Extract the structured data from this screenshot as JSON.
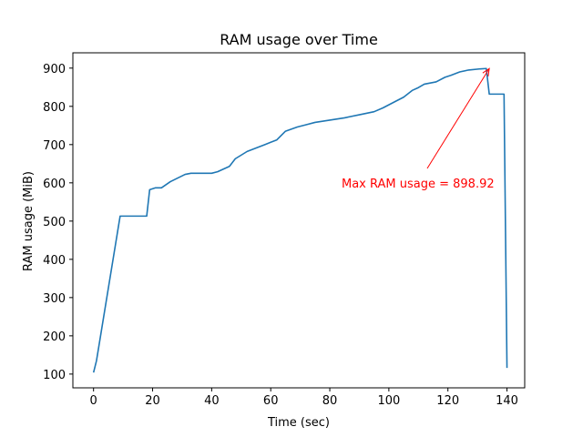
{
  "chart_data": {
    "type": "line",
    "title": "RAM usage over Time",
    "xlabel": "Time (sec)",
    "ylabel": "RAM usage (MiB)",
    "xlim": [
      -7,
      146
    ],
    "ylim": [
      64,
      940
    ],
    "xticks": [
      0,
      20,
      40,
      60,
      80,
      100,
      120,
      140
    ],
    "yticks": [
      100,
      200,
      300,
      400,
      500,
      600,
      700,
      800,
      900
    ],
    "grid": false,
    "series": [
      {
        "color": "#1f77b4",
        "x": [
          0,
          1,
          9,
          18,
          19,
          21,
          23,
          26,
          31,
          33,
          40,
          42,
          46,
          48,
          52,
          55,
          58,
          60,
          62,
          65,
          69,
          72,
          75,
          80,
          85,
          90,
          95,
          98,
          102,
          105,
          108,
          110,
          112,
          116,
          119,
          121,
          124,
          127,
          131,
          133,
          134,
          137,
          139,
          140
        ],
        "y": [
          104,
          135,
          513,
          513,
          582,
          587,
          587,
          603,
          622,
          625,
          625,
          629,
          643,
          663,
          682,
          691,
          700,
          706,
          712,
          735,
          746,
          752,
          758,
          764,
          770,
          778,
          786,
          796,
          812,
          824,
          842,
          849,
          858,
          864,
          876,
          881,
          890,
          895,
          898,
          898.92,
          832,
          832,
          832,
          116
        ]
      }
    ],
    "annotation": {
      "text": "Max RAM usage = 898.92",
      "color": "#ff0000",
      "point": [
        134,
        898.92
      ],
      "text_position": [
        84,
        600
      ]
    }
  }
}
